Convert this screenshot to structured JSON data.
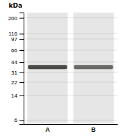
{
  "chart_data": {
    "type": "gel",
    "ylabel": "kDa",
    "categories": [
      "A",
      "B"
    ],
    "values": [
      37,
      37
    ],
    "log": "y",
    "ylim": [
      5.248074602497726,
      239.8832919019491
    ],
    "yticks": [
      200,
      116,
      97,
      66,
      44,
      31,
      22,
      14,
      6
    ],
    "grid": true,
    "colors": [
      "#4a4945",
      "#6a6965"
    ]
  }
}
